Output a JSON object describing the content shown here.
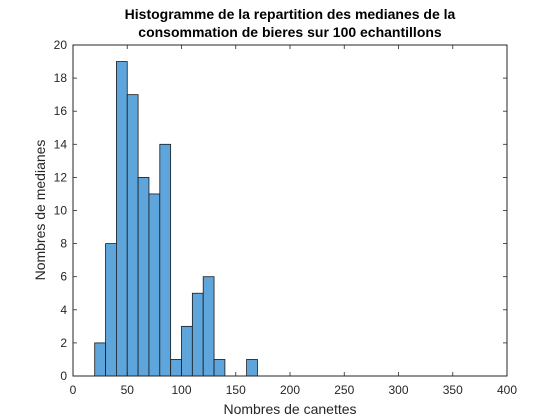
{
  "chart_data": {
    "type": "bar",
    "title_lines": [
      "Histogramme de la repartition des medianes de la",
      "consommation de bieres sur 100 echantillons"
    ],
    "xlabel": "Nombres de canettes",
    "ylabel": "Nombres de medianes",
    "xlim": [
      0,
      400
    ],
    "ylim": [
      0,
      20
    ],
    "xticks": [
      "0",
      "50",
      "100",
      "150",
      "200",
      "250",
      "300",
      "350",
      "400"
    ],
    "yticks": [
      "0",
      "2",
      "4",
      "6",
      "8",
      "10",
      "12",
      "14",
      "16",
      "18",
      "20"
    ],
    "bin_width": 10,
    "bins": [
      {
        "x0": 20,
        "x1": 30,
        "count": 2
      },
      {
        "x0": 30,
        "x1": 40,
        "count": 8
      },
      {
        "x0": 40,
        "x1": 50,
        "count": 19
      },
      {
        "x0": 50,
        "x1": 60,
        "count": 17
      },
      {
        "x0": 60,
        "x1": 70,
        "count": 12
      },
      {
        "x0": 70,
        "x1": 80,
        "count": 11
      },
      {
        "x0": 80,
        "x1": 90,
        "count": 14
      },
      {
        "x0": 90,
        "x1": 100,
        "count": 1
      },
      {
        "x0": 100,
        "x1": 110,
        "count": 3
      },
      {
        "x0": 110,
        "x1": 120,
        "count": 5
      },
      {
        "x0": 120,
        "x1": 130,
        "count": 6
      },
      {
        "x0": 130,
        "x1": 140,
        "count": 1
      },
      {
        "x0": 140,
        "x1": 150,
        "count": 0
      },
      {
        "x0": 150,
        "x1": 160,
        "count": 0
      },
      {
        "x0": 160,
        "x1": 170,
        "count": 1
      }
    ],
    "bar_color": "#5DA5DA",
    "edge_color": "#1a1a1a",
    "grid": false,
    "box": true
  }
}
